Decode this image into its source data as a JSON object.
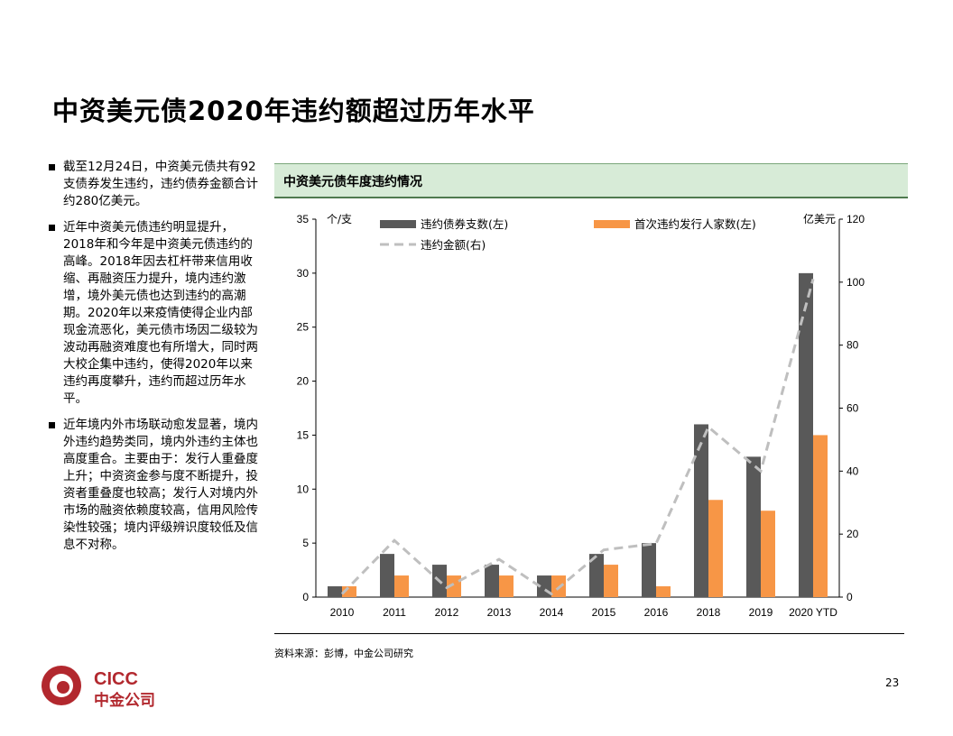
{
  "title": "中资美元债2020年违约额超过历年水平",
  "bullets": [
    "截至12月24日，中资美元债共有92支债券发生违约，违约债券金额合计约280亿美元。",
    "近年中资美元债违约明显提升，2018年和今年是中资美元债违约的高峰。2018年因去杠杆带来信用收缩、再融资压力提升，境内违约激增，境外美元债也达到违约的高潮期。2020年以来疫情使得企业内部现金流恶化，美元债市场因二级较为波动再融资难度也有所增大，同时两大校企集中违约，使得2020年以来违约再度攀升，违约而超过历年水平。",
    "近年境内外市场联动愈发显著，境内外违约趋势类同，境内外违约主体也高度重合。主要由于：发行人重叠度上升；中资资金参与度不断提升，投资者重叠度也较高；发行人对境内外市场的融资依赖度较高，信用风险传染性较强；境内评级辨识度较低及信息不对称。"
  ],
  "chart_header": "中资美元债年度违约情况",
  "source": "资料来源：彭博，中金公司研究",
  "page_number": "23",
  "logo": {
    "latin": "CICC",
    "chinese": "中金公司"
  },
  "colors": {
    "bar_left": "#595959",
    "bar_right": "#f79646",
    "line": "#bfbfbf",
    "header_bg": "#d7ebd7",
    "logo_red": "#b2282e"
  },
  "chart_data": {
    "type": "bar",
    "categories": [
      "2010",
      "2011",
      "2012",
      "2013",
      "2014",
      "2015",
      "2016",
      "2018",
      "2019",
      "2020 YTD"
    ],
    "y_left_unit": "个/支",
    "y_right_unit": "亿美元",
    "ylim_left": [
      0,
      35
    ],
    "yticks_left": [
      0,
      5,
      10,
      15,
      20,
      25,
      30,
      35
    ],
    "ylim_right": [
      0,
      120
    ],
    "yticks_right": [
      0,
      20,
      40,
      60,
      80,
      100,
      120
    ],
    "series": [
      {
        "name": "违约债券支数(左)",
        "type": "bar",
        "axis": "left",
        "values": [
          1,
          4,
          3,
          3,
          2,
          4,
          5,
          16,
          13,
          30
        ]
      },
      {
        "name": "首次违约发行人家数(左)",
        "type": "bar",
        "axis": "left",
        "values": [
          1,
          2,
          2,
          2,
          2,
          3,
          1,
          9,
          8,
          15
        ]
      },
      {
        "name": "违约金额(右)",
        "type": "line",
        "style": "dashed",
        "axis": "right",
        "values": [
          1,
          18,
          3,
          12,
          1,
          15,
          17,
          54,
          40,
          101
        ]
      }
    ],
    "legend_position": "top",
    "grid": false
  }
}
